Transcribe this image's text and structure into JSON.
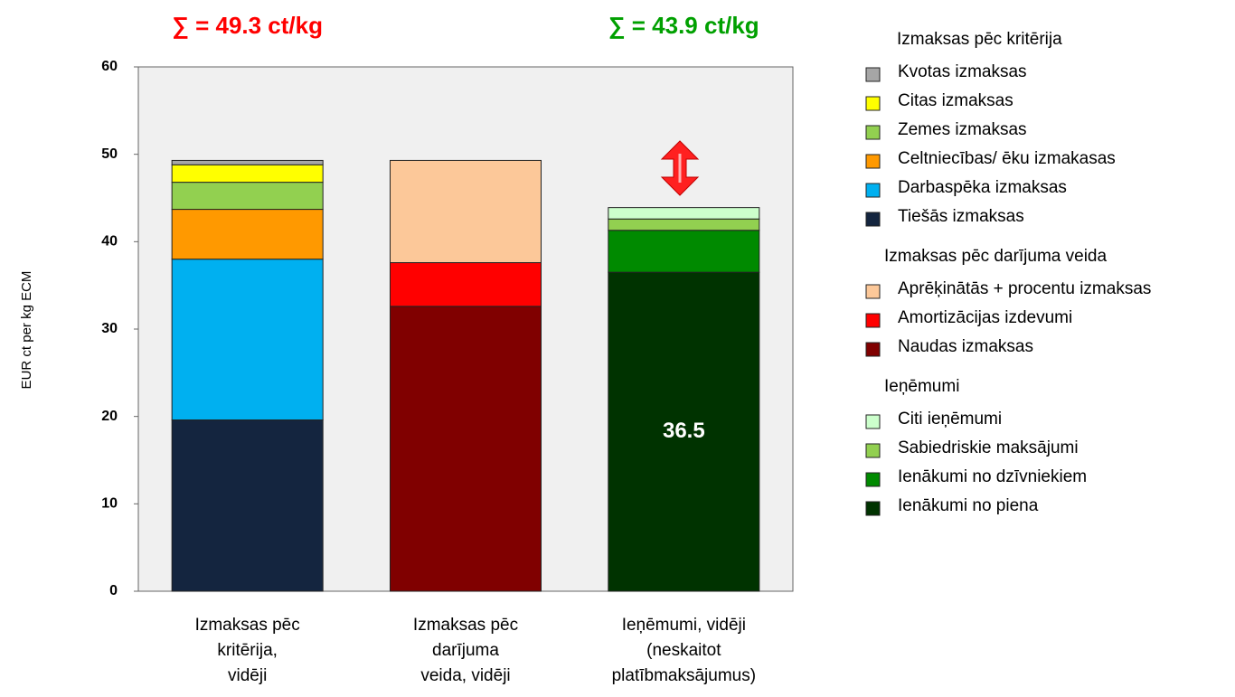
{
  "chart_data": {
    "type": "stacked_bar",
    "y_label": "EUR ct per kg ECM",
    "ylim": [
      0,
      60
    ],
    "yticks": [
      0,
      10,
      20,
      30,
      40,
      50,
      60
    ],
    "grid": false,
    "categories": [
      [
        "Izmaksas pēc",
        "kritērija,",
        "vidēji"
      ],
      [
        "Izmaksas pēc",
        "darījuma",
        "veida, vidēji"
      ],
      [
        "Ieņēmumi, vidēji",
        "(neskaitot",
        "platībmaksājumus)"
      ]
    ],
    "annotations": [
      {
        "text": "∑ = 49.3 ct/kg",
        "color": "#ff0000",
        "category": 0
      },
      {
        "text": "∑ = 43.9 ct/kg",
        "color": "#00a000",
        "category": 2
      }
    ],
    "legend_groups": [
      {
        "title": "Izmaksas pēc kritērija",
        "series": [
          {
            "name": "Kvotas izmaksas",
            "color": "#a6a6a6",
            "values": [
              0.5,
              null,
              null
            ]
          },
          {
            "name": "Citas izmaksas",
            "color": "#ffff00",
            "values": [
              2.0,
              null,
              null
            ]
          },
          {
            "name": "Zemes izmaksas",
            "color": "#92d050",
            "values": [
              3.1,
              null,
              null
            ]
          },
          {
            "name": "Celtniecības/ ēku izmakasas",
            "color": "#ff9900",
            "values": [
              5.7,
              null,
              null
            ]
          },
          {
            "name": "Darbaspēka izmaksas",
            "color": "#00b0f0",
            "values": [
              18.4,
              null,
              null
            ]
          },
          {
            "name": "Tiešās izmaksas",
            "color": "#14253f",
            "values": [
              19.6,
              null,
              null
            ]
          }
        ]
      },
      {
        "title": "Izmaksas pēc darījuma veida",
        "series": [
          {
            "name": "Aprēķinātās + procentu izmaksas",
            "color": "#fcc899",
            "values": [
              null,
              11.7,
              null
            ]
          },
          {
            "name": "Amortizācijas izdevumi",
            "color": "#ff0000",
            "values": [
              null,
              5.0,
              null
            ]
          },
          {
            "name": "Naudas izmaksas",
            "color": "#800000",
            "values": [
              null,
              32.6,
              null
            ]
          }
        ]
      },
      {
        "title": "Ieņēmumi",
        "series": [
          {
            "name": "Citi ieņēmumi",
            "color": "#ccffcc",
            "values": [
              null,
              null,
              1.3
            ]
          },
          {
            "name": "Sabiedriskie maksājumi",
            "color": "#92d050",
            "values": [
              null,
              null,
              1.3
            ]
          },
          {
            "name": "Ienākumi no dzīvniekiem",
            "color": "#008a00",
            "values": [
              null,
              null,
              4.8
            ]
          },
          {
            "name": "Ienākumi no piena",
            "color": "#003300",
            "values": [
              null,
              null,
              36.5
            ],
            "show_label": true
          }
        ]
      }
    ]
  }
}
